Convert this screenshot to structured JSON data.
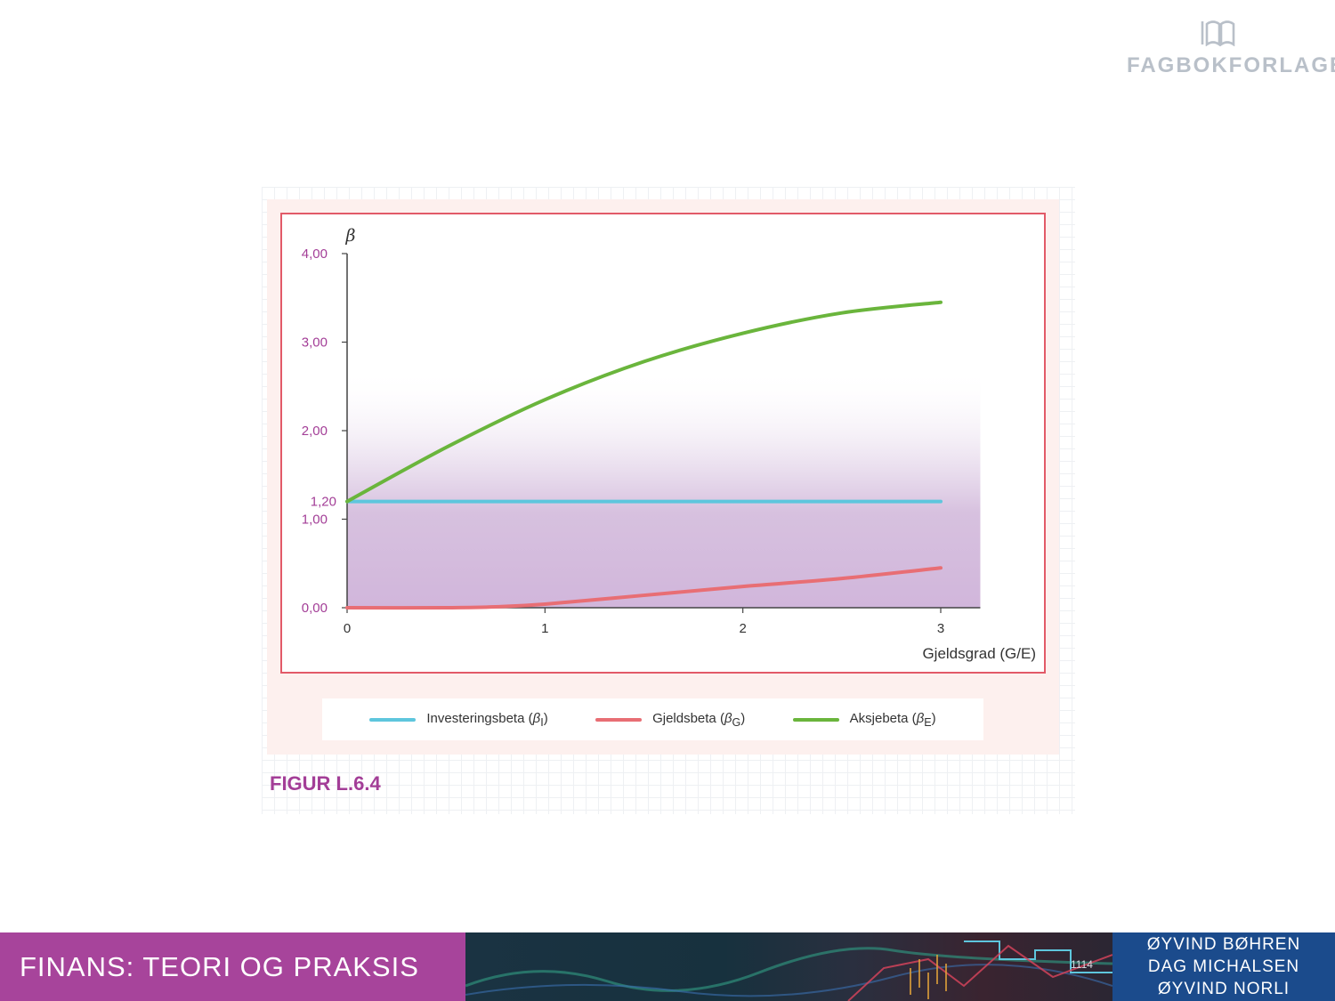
{
  "brand": {
    "logo_icon": "open-book-icon",
    "name": "FAGBOKFORLAGET"
  },
  "figure": {
    "caption": "FIGUR L.6.4"
  },
  "chart_data": {
    "type": "line",
    "title": "",
    "ylabel": "β",
    "xlabel": "Gjeldsgrad (G/E)",
    "xlim": [
      0,
      3.2
    ],
    "ylim": [
      0,
      4
    ],
    "x_ticks": [
      "0",
      "1",
      "2",
      "3"
    ],
    "y_ticks": [
      "0,00",
      "1,00",
      "1,20",
      "2,00",
      "3,00",
      "4,00"
    ],
    "series": [
      {
        "name": "Investeringsbeta (βI)",
        "color": "#5ec6dd",
        "x": [
          0,
          0.5,
          1,
          1.5,
          2,
          2.5,
          3
        ],
        "y": [
          1.2,
          1.2,
          1.2,
          1.2,
          1.2,
          1.2,
          1.2
        ]
      },
      {
        "name": "Gjeldsbeta (βG)",
        "color": "#e86e74",
        "x": [
          0,
          0.5,
          0.75,
          1,
          1.5,
          2,
          2.5,
          3
        ],
        "y": [
          0.0,
          0.0,
          0.01,
          0.04,
          0.14,
          0.24,
          0.33,
          0.45
        ]
      },
      {
        "name": "Aksjebeta (βE)",
        "color": "#6ab53c",
        "x": [
          0,
          0.5,
          1,
          1.5,
          2,
          2.5,
          3
        ],
        "y": [
          1.2,
          1.81,
          2.35,
          2.78,
          3.1,
          3.33,
          3.45
        ]
      }
    ],
    "legend_position": "bottom"
  },
  "legend": {
    "items": [
      {
        "label": "Investeringsbeta",
        "sym": "β",
        "sub": "I",
        "color": "#5ec6dd"
      },
      {
        "label": "Gjeldsbeta",
        "sym": "β",
        "sub": "G",
        "color": "#e86e74"
      },
      {
        "label": "Aksjebeta",
        "sym": "β",
        "sub": "E",
        "color": "#6ab53c"
      }
    ]
  },
  "footer": {
    "book_title": "FINANS: TEORI OG PRAKSIS",
    "authors": [
      "ØYVIND BØHREN",
      "DAG MICHALSEN",
      "ØYVIND NORLI"
    ]
  }
}
